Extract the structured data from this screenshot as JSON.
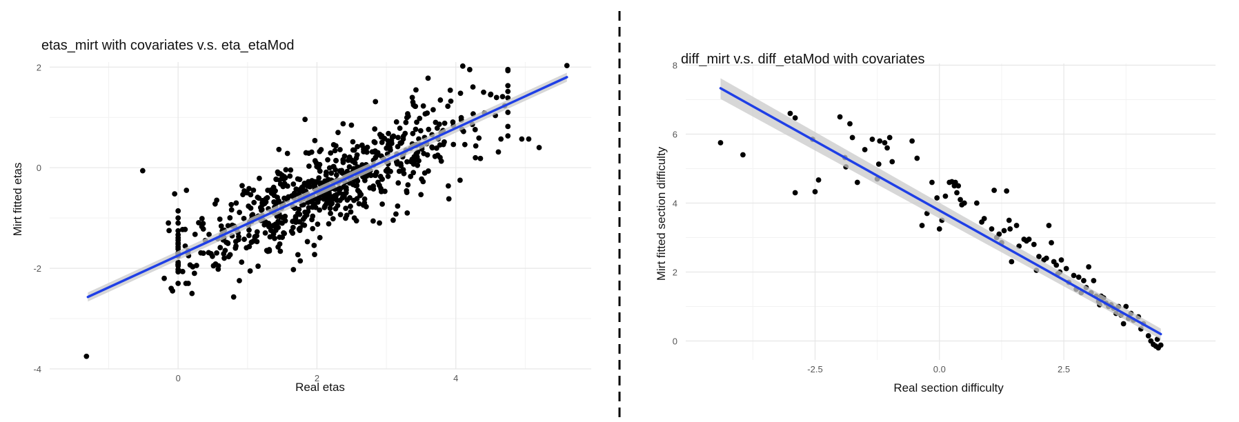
{
  "colors": {
    "fit_line": "#1f3fe6",
    "band": "#c9c9c9",
    "points": "#000000",
    "grid": "#e6e6e6",
    "divider": "#000000"
  },
  "chart_data": [
    {
      "type": "scatter",
      "title": "etas_mirt with covariates v.s. eta_etaMod",
      "xlabel": "Real etas",
      "ylabel": "Mirt fitted etas",
      "xlim": [
        -1.85,
        5.95
      ],
      "ylim": [
        -4.0,
        2.1
      ],
      "xticks": [
        0,
        2,
        4
      ],
      "yticks": [
        -4,
        -2,
        0,
        2
      ],
      "xtick_labels": [
        "0",
        "2",
        "4"
      ],
      "ytick_labels": [
        "-4",
        "-2",
        "0",
        "2"
      ],
      "grid": true,
      "fit_line": {
        "x": [
          -1.3,
          5.6
        ],
        "y": [
          -2.57,
          1.8
        ]
      },
      "confidence_band": {
        "x": [
          -1.3,
          5.6
        ],
        "lower": [
          -2.66,
          1.71
        ],
        "upper": [
          -2.48,
          1.89
        ]
      },
      "generated_cloud": {
        "n": 720,
        "center_x": 2.1,
        "sd_x": 1.05,
        "slope": 0.634,
        "intercept": -1.75,
        "noise_sd": 0.42,
        "seed": 17
      },
      "points": [
        [
          -1.32,
          -3.75
        ],
        [
          -0.51,
          -0.06
        ],
        [
          -0.14,
          -1.1
        ],
        [
          -0.13,
          -1.25
        ],
        [
          -0.05,
          -0.52
        ],
        [
          0.12,
          -0.45
        ],
        [
          -0.2,
          -2.2
        ],
        [
          -0.1,
          -2.4
        ],
        [
          -0.08,
          -2.45
        ],
        [
          0.2,
          -2.5
        ],
        [
          0.8,
          -2.57
        ],
        [
          5.6,
          2.03
        ],
        [
          4.1,
          2.02
        ],
        [
          4.2,
          1.95
        ],
        [
          4.95,
          0.57
        ],
        [
          5.05,
          0.57
        ],
        [
          5.2,
          0.4
        ],
        [
          4.65,
          0.57
        ],
        [
          3.9,
          -0.62
        ],
        [
          3.3,
          -0.9
        ],
        [
          2.9,
          -1.1
        ],
        [
          3.6,
          1.78
        ],
        [
          4.75,
          1.63
        ],
        [
          4.75,
          1.1
        ],
        [
          4.5,
          1.45
        ],
        [
          4.4,
          1.5
        ]
      ]
    },
    {
      "type": "scatter",
      "title": "diff_mirt v.s. diff_etaMod with covariates",
      "xlabel": "Real section difficulty",
      "ylabel": "Mirt fitted section difficulty",
      "xlim": [
        -5.1,
        5.55
      ],
      "ylim": [
        -0.55,
        8.05
      ],
      "xticks": [
        -2.5,
        0.0,
        2.5
      ],
      "yticks": [
        0,
        2,
        4,
        6,
        8
      ],
      "xtick_labels": [
        "-2.5",
        "0.0",
        "2.5"
      ],
      "ytick_labels": [
        "0",
        "2",
        "4",
        "6",
        "8"
      ],
      "grid": true,
      "fit_line": {
        "x": [
          -4.4,
          4.45
        ],
        "y": [
          7.33,
          0.2
        ]
      },
      "confidence_band": {
        "x": [
          -4.4,
          4.45
        ],
        "lower": [
          7.02,
          0.05
        ],
        "upper": [
          7.62,
          0.36
        ]
      },
      "points": [
        [
          -4.4,
          5.75
        ],
        [
          -3.95,
          5.4
        ],
        [
          -3.0,
          6.6
        ],
        [
          -2.9,
          6.47
        ],
        [
          -2.9,
          4.3
        ],
        [
          -2.55,
          5.85
        ],
        [
          -2.5,
          4.33
        ],
        [
          -2.43,
          4.67
        ],
        [
          -2.0,
          6.5
        ],
        [
          -1.9,
          5.32
        ],
        [
          -1.88,
          5.05
        ],
        [
          -1.8,
          6.3
        ],
        [
          -1.75,
          5.9
        ],
        [
          -1.65,
          4.6
        ],
        [
          -1.5,
          5.55
        ],
        [
          -1.35,
          5.85
        ],
        [
          -1.25,
          4.7
        ],
        [
          -1.22,
          5.13
        ],
        [
          -1.2,
          5.8
        ],
        [
          -1.1,
          5.75
        ],
        [
          -1.05,
          5.6
        ],
        [
          -1.0,
          5.9
        ],
        [
          -0.95,
          5.2
        ],
        [
          -0.55,
          5.8
        ],
        [
          -0.45,
          5.3
        ],
        [
          -0.35,
          3.35
        ],
        [
          -0.25,
          3.7
        ],
        [
          -0.15,
          4.6
        ],
        [
          -0.05,
          4.15
        ],
        [
          0.0,
          3.25
        ],
        [
          0.05,
          3.5
        ],
        [
          0.12,
          4.2
        ],
        [
          0.2,
          4.6
        ],
        [
          0.25,
          4.62
        ],
        [
          0.3,
          4.5
        ],
        [
          0.32,
          4.6
        ],
        [
          0.35,
          4.3
        ],
        [
          0.38,
          4.5
        ],
        [
          0.42,
          4.1
        ],
        [
          0.45,
          3.95
        ],
        [
          0.5,
          4.0
        ],
        [
          0.75,
          4.0
        ],
        [
          0.85,
          3.45
        ],
        [
          0.9,
          3.55
        ],
        [
          1.05,
          3.25
        ],
        [
          1.1,
          4.37
        ],
        [
          1.15,
          3.0
        ],
        [
          1.2,
          3.1
        ],
        [
          1.25,
          2.85
        ],
        [
          1.3,
          3.2
        ],
        [
          1.35,
          4.35
        ],
        [
          1.4,
          3.5
        ],
        [
          1.42,
          3.25
        ],
        [
          1.45,
          2.3
        ],
        [
          1.55,
          3.35
        ],
        [
          1.6,
          2.75
        ],
        [
          1.7,
          2.95
        ],
        [
          1.75,
          2.9
        ],
        [
          1.8,
          2.95
        ],
        [
          1.9,
          2.8
        ],
        [
          1.95,
          2.05
        ],
        [
          2.0,
          2.45
        ],
        [
          2.1,
          2.35
        ],
        [
          2.15,
          2.4
        ],
        [
          2.2,
          3.35
        ],
        [
          2.25,
          2.85
        ],
        [
          2.3,
          2.3
        ],
        [
          2.35,
          2.2
        ],
        [
          2.38,
          1.95
        ],
        [
          2.42,
          2.0
        ],
        [
          2.45,
          2.35
        ],
        [
          2.55,
          2.1
        ],
        [
          2.6,
          1.7
        ],
        [
          2.7,
          1.9
        ],
        [
          2.75,
          1.5
        ],
        [
          2.8,
          1.85
        ],
        [
          2.85,
          1.4
        ],
        [
          2.9,
          1.75
        ],
        [
          2.95,
          1.55
        ],
        [
          3.0,
          2.15
        ],
        [
          3.05,
          1.4
        ],
        [
          3.1,
          1.75
        ],
        [
          3.15,
          1.3
        ],
        [
          3.2,
          1.15
        ],
        [
          3.22,
          1.05
        ],
        [
          3.25,
          1.3
        ],
        [
          3.3,
          1.25
        ],
        [
          3.35,
          1.1
        ],
        [
          3.4,
          1.0
        ],
        [
          3.45,
          1.05
        ],
        [
          3.5,
          0.95
        ],
        [
          3.55,
          0.8
        ],
        [
          3.6,
          1.0
        ],
        [
          3.65,
          0.75
        ],
        [
          3.7,
          0.5
        ],
        [
          3.75,
          1.0
        ],
        [
          3.8,
          0.65
        ],
        [
          3.85,
          0.8
        ],
        [
          3.9,
          0.6
        ],
        [
          4.0,
          0.7
        ],
        [
          4.05,
          0.35
        ],
        [
          4.1,
          0.5
        ],
        [
          4.2,
          0.15
        ],
        [
          4.25,
          0.0
        ],
        [
          4.3,
          -0.1
        ],
        [
          4.35,
          -0.15
        ],
        [
          4.38,
          0.05
        ],
        [
          4.4,
          -0.2
        ],
        [
          4.45,
          -0.12
        ]
      ]
    }
  ]
}
